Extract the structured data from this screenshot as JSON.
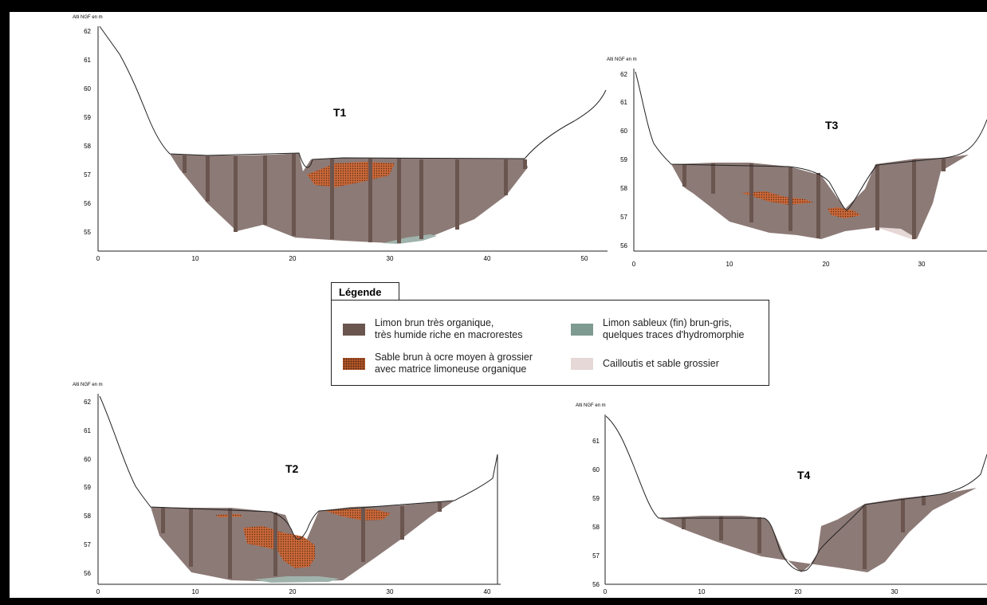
{
  "y_axis_label": "Alti NGF en m",
  "sections": [
    {
      "title": "T1",
      "y_ticks": [
        "62",
        "61",
        "60",
        "59",
        "58",
        "57",
        "56",
        "55"
      ],
      "x_ticks": [
        "0",
        "10",
        "20",
        "30",
        "40",
        "50"
      ]
    },
    {
      "title": "T3",
      "y_ticks": [
        "62",
        "61",
        "60",
        "59",
        "58",
        "57",
        "56"
      ],
      "x_ticks": [
        "0",
        "10",
        "20",
        "30"
      ]
    },
    {
      "title": "T2",
      "y_ticks": [
        "62",
        "61",
        "60",
        "59",
        "58",
        "57",
        "56"
      ],
      "x_ticks": [
        "0",
        "10",
        "20",
        "30",
        "40"
      ]
    },
    {
      "title": "T4",
      "y_ticks": [
        "61",
        "60",
        "59",
        "58",
        "57",
        "56"
      ],
      "x_ticks": [
        "0",
        "10",
        "20",
        "30"
      ]
    }
  ],
  "legend": {
    "title": "Légende",
    "items": [
      {
        "line1": "Limon brun très organique,",
        "line2": "très humide riche en macrorestes",
        "color": "#6b554f"
      },
      {
        "line1": "Sable brun à ocre moyen à grossier",
        "line2": "avec matrice limoneuse organique",
        "color": "#c4602e"
      },
      {
        "line1": "Limon sableux (fin) brun-gris,",
        "line2": "quelques traces d'hydromorphie",
        "color": "#7f9a90"
      },
      {
        "line1": "Cailloutis et sable grossier",
        "line2": "",
        "color": "#e5d8d6"
      }
    ]
  },
  "colors": {
    "fill_main": "#8c7a76",
    "core_bar": "#6b554f",
    "sand": "#c4602e",
    "silt": "#9fb3ac",
    "gravel": "#e5d8d6"
  }
}
